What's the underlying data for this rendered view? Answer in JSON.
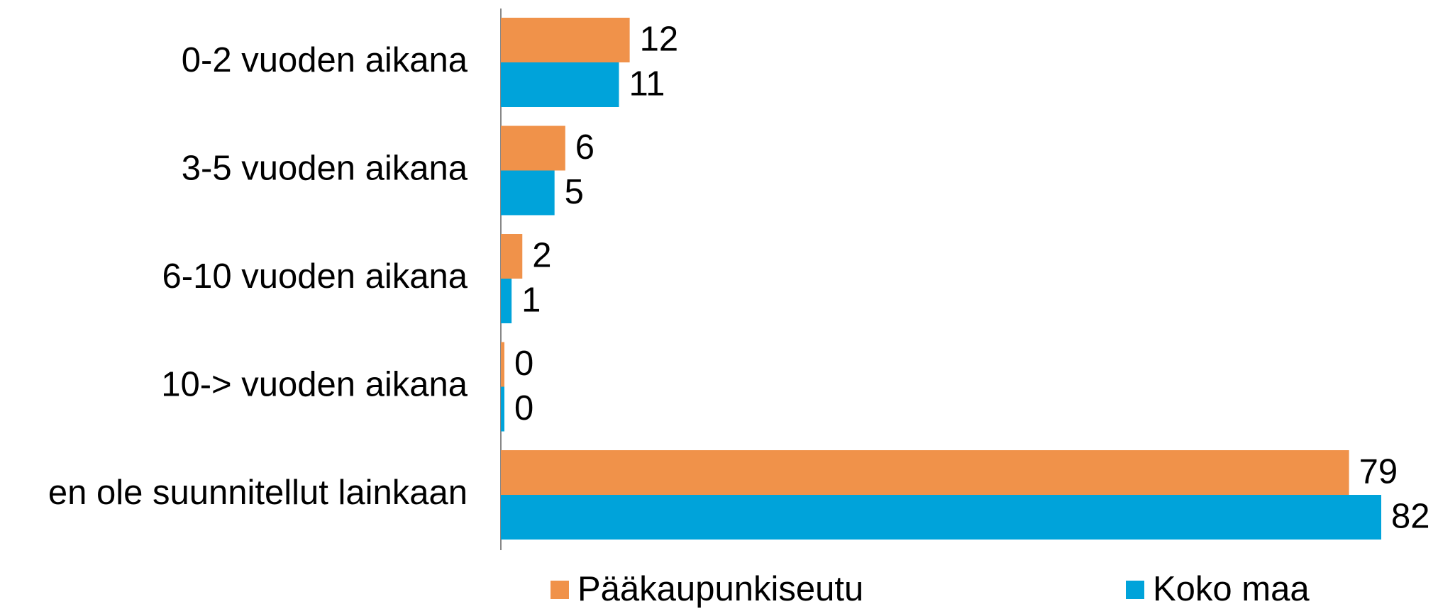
{
  "chart_data": {
    "type": "barh",
    "categories": [
      "0-2 vuoden aikana",
      "3-5 vuoden aikana",
      "6-10 vuoden aikana",
      "10-> vuoden aikana",
      "en ole suunnitellut lainkaan"
    ],
    "series": [
      {
        "name": "Pääkaupunkiseutu",
        "color": "#F0924A",
        "values": [
          12,
          6,
          2,
          0,
          79
        ]
      },
      {
        "name": "Koko maa",
        "color": "#00A3DA",
        "values": [
          11,
          5,
          1,
          0,
          82
        ]
      }
    ],
    "legend": "bottom"
  }
}
